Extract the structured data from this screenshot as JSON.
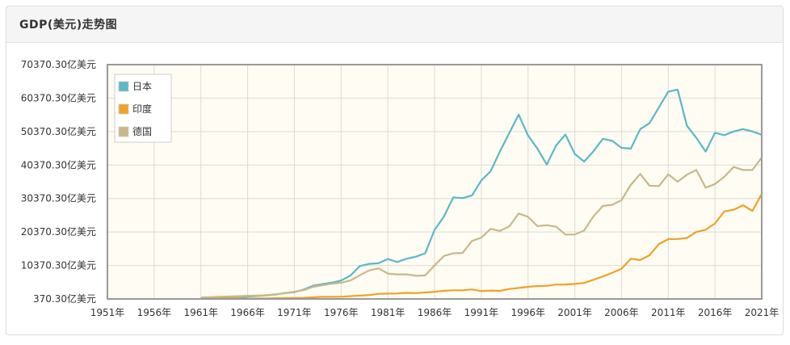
{
  "panel": {
    "title": "GDP(美元)走势图"
  },
  "chart_data": {
    "type": "line",
    "title": "",
    "xlabel": "",
    "ylabel": "",
    "x": [
      1961,
      1962,
      1963,
      1964,
      1965,
      1966,
      1967,
      1968,
      1969,
      1970,
      1971,
      1972,
      1973,
      1974,
      1975,
      1976,
      1977,
      1978,
      1979,
      1980,
      1981,
      1982,
      1983,
      1984,
      1985,
      1986,
      1987,
      1988,
      1989,
      1990,
      1991,
      1992,
      1993,
      1994,
      1995,
      1996,
      1997,
      1998,
      1999,
      2000,
      2001,
      2002,
      2003,
      2004,
      2005,
      2006,
      2007,
      2008,
      2009,
      2010,
      2011,
      2012,
      2013,
      2014,
      2015,
      2016,
      2017,
      2018,
      2019,
      2020,
      2021
    ],
    "xlim": [
      1951,
      2021
    ],
    "ylim": [
      370.3,
      70370.3
    ],
    "xticks": [
      1951,
      1956,
      1961,
      1966,
      1971,
      1976,
      1981,
      1986,
      1991,
      1996,
      2001,
      2006,
      2011,
      2016,
      2021
    ],
    "xtick_labels": [
      "1951年",
      "1956年",
      "1961年",
      "1966年",
      "1971年",
      "1976年",
      "1981年",
      "1986年",
      "1991年",
      "1996年",
      "2001年",
      "2006年",
      "2011年",
      "2016年",
      "2021年"
    ],
    "yticks": [
      370.3,
      10370.3,
      20370.3,
      30370.3,
      40370.3,
      50370.3,
      60370.3,
      70370.3
    ],
    "ytick_labels": [
      "370.30亿美元",
      "10370.30亿美元",
      "20370.30亿美元",
      "30370.30亿美元",
      "40370.30亿美元",
      "50370.30亿美元",
      "60370.30亿美元",
      "70370.30亿美元"
    ],
    "grid": true,
    "legend": "top-left",
    "series": [
      {
        "name": "日本",
        "color": "#5bb8c8",
        "values": [
          530,
          610,
          700,
          820,
          910,
          1060,
          1230,
          1460,
          1720,
          2120,
          2400,
          3180,
          4320,
          4800,
          5210,
          5870,
          7370,
          10200,
          10850,
          11050,
          12300,
          11400,
          12400,
          13000,
          14000,
          21000,
          25000,
          30700,
          30500,
          31300,
          35800,
          38500,
          44500,
          50000,
          55450,
          49200,
          45300,
          40500,
          46200,
          49500,
          43700,
          41400,
          44500,
          48200,
          47600,
          45500,
          45300,
          51100,
          52900,
          57600,
          62300,
          62900,
          52100,
          48500,
          44400,
          50000,
          49300,
          50400,
          51100,
          50400,
          49400
        ]
      },
      {
        "name": "印度",
        "color": "#f0a12a",
        "values": [
          400,
          450,
          480,
          560,
          590,
          450,
          500,
          530,
          580,
          630,
          670,
          710,
          850,
          990,
          990,
          1020,
          1210,
          1370,
          1530,
          1890,
          1960,
          2000,
          2180,
          2120,
          2330,
          2490,
          2800,
          2960,
          2960,
          3210,
          2700,
          2880,
          2790,
          3330,
          3660,
          3990,
          4230,
          4280,
          4670,
          4680,
          4850,
          5150,
          6080,
          7090,
          8200,
          9400,
          12380,
          11990,
          13420,
          16750,
          18240,
          18280,
          18570,
          20390,
          21040,
          22950,
          26510,
          27030,
          28360,
          26680,
          31760
        ]
      },
      {
        "name": "德国",
        "color": "#c8b88a",
        "values": [
          800,
          900,
          1000,
          1100,
          1200,
          1300,
          1350,
          1450,
          1650,
          2150,
          2500,
          3000,
          3980,
          4450,
          4900,
          5200,
          5900,
          7450,
          8900,
          9500,
          7950,
          7700,
          7700,
          7300,
          7400,
          10400,
          13200,
          14000,
          14100,
          17700,
          18700,
          21300,
          20700,
          22100,
          25900,
          24900,
          22150,
          22400,
          21950,
          19600,
          19600,
          20800,
          25050,
          28150,
          28500,
          29900,
          34500,
          37700,
          34200,
          34100,
          37600,
          35400,
          37500,
          38900,
          33600,
          34700,
          36900,
          39800,
          38900,
          38900,
          42600
        ]
      }
    ]
  }
}
